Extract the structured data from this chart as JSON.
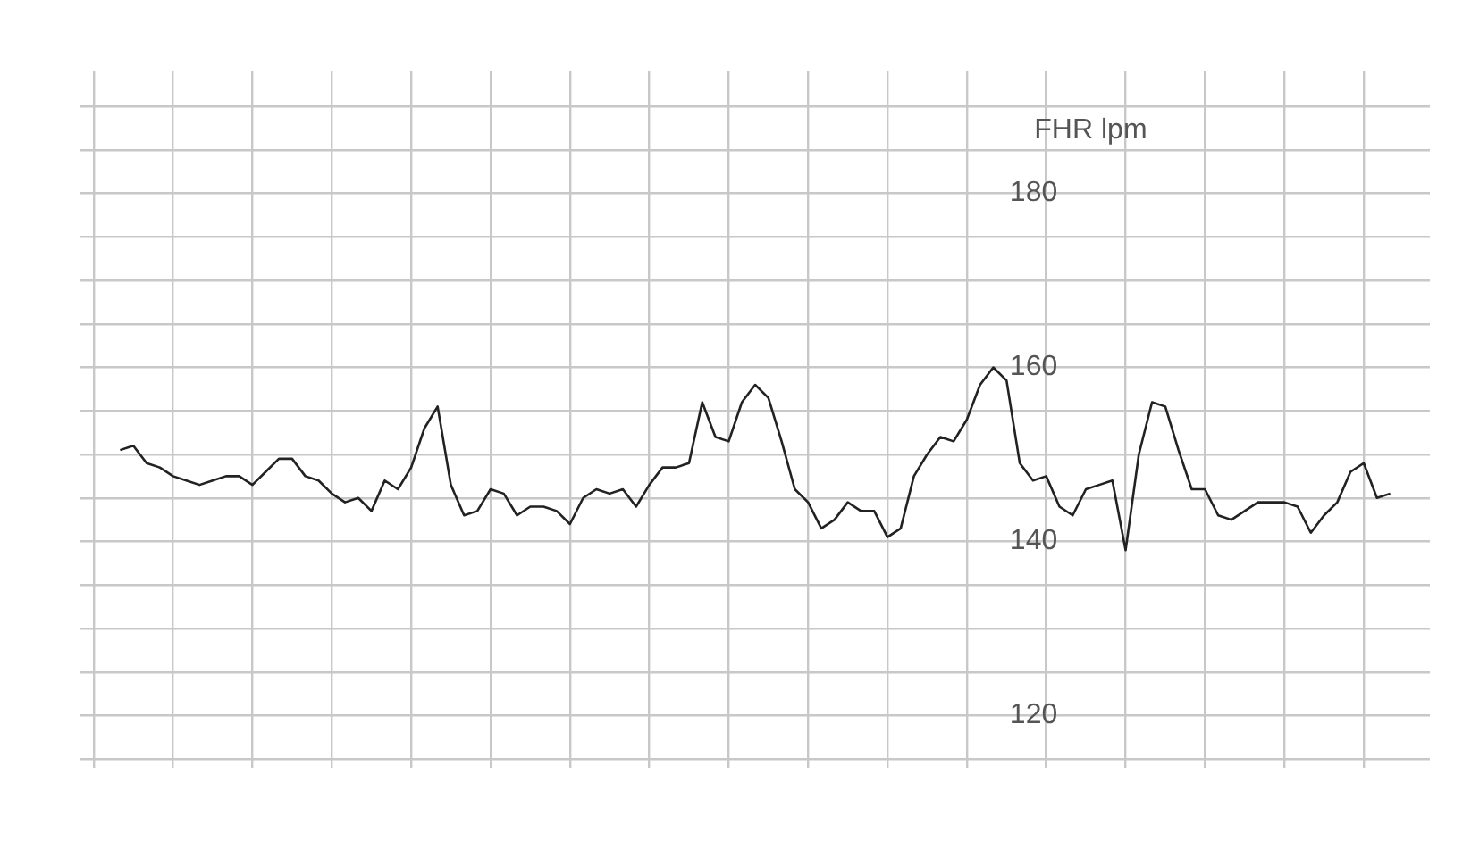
{
  "chart_data": {
    "type": "line",
    "ylabel": "FHR lpm",
    "color": "#222222",
    "grid": true,
    "tick_labels": "y",
    "marker": "none",
    "line_style": "solid",
    "categories": [
      null,
      null,
      null,
      null,
      null,
      null,
      null,
      null,
      null,
      null,
      null,
      null,
      null,
      null,
      null,
      null,
      null,
      null,
      null,
      null,
      null,
      null,
      null,
      null,
      null,
      null,
      null,
      null,
      null,
      null,
      null,
      null,
      null,
      null,
      null,
      null,
      null,
      null,
      null,
      null,
      null,
      null,
      null,
      null,
      null,
      null,
      null,
      null,
      null,
      null,
      null,
      null,
      null,
      null,
      null,
      null,
      null,
      null,
      null,
      null,
      null,
      null,
      null,
      null,
      null,
      null,
      null,
      null,
      null,
      null,
      null,
      null,
      null,
      null,
      null,
      null,
      null,
      null,
      null,
      null,
      null,
      null,
      null,
      null,
      null,
      null,
      null,
      null,
      null,
      null,
      null,
      null,
      null,
      null,
      null,
      null,
      null,
      null,
      null,
      null,
      null,
      null,
      null
    ],
    "values": [
      null,
      null,
      null,
      150.5,
      151,
      149,
      148.5,
      147.5,
      147,
      146.5,
      147,
      147.5,
      147.5,
      146.5,
      148,
      149.5,
      149.5,
      147.5,
      147,
      145.5,
      144.5,
      145,
      143.5,
      147,
      146,
      148.5,
      153,
      155.5,
      146.5,
      143,
      143.5,
      146,
      145.5,
      143,
      144,
      144,
      143.5,
      142,
      145,
      146,
      145.5,
      146,
      144,
      146.5,
      148.5,
      148.5,
      149,
      156,
      152,
      151.5,
      156,
      158,
      156.5,
      151.5,
      146,
      144.5,
      141.5,
      142.5,
      144.5,
      143.5,
      143.5,
      140.5,
      141.5,
      147.5,
      150,
      152,
      151.5,
      154,
      158,
      160,
      158.5,
      149,
      147,
      147.5,
      144,
      143,
      146,
      146.5,
      147,
      139,
      150,
      156,
      155.5,
      150.5,
      146,
      146,
      143,
      142.5,
      143.5,
      144.5,
      144.5,
      144.5,
      144,
      141,
      143,
      144.5,
      148,
      149,
      145,
      145.5,
      null,
      null,
      null
    ],
    "ylim": [
      114,
      194
    ],
    "yticks": [
      {
        "value": 115,
        "label": null
      },
      120,
      {
        "value": 125,
        "label": null
      },
      {
        "value": 130,
        "label": null
      },
      {
        "value": 135,
        "label": null
      },
      140,
      {
        "value": 145,
        "label": null
      },
      {
        "value": 150,
        "label": null
      },
      {
        "value": 155,
        "label": null
      },
      160,
      {
        "value": 165,
        "label": null
      },
      {
        "value": 170,
        "label": null
      },
      {
        "value": 175,
        "label": null
      },
      180,
      {
        "value": 185,
        "label": null
      },
      {
        "value": 190,
        "label": null
      }
    ]
  }
}
